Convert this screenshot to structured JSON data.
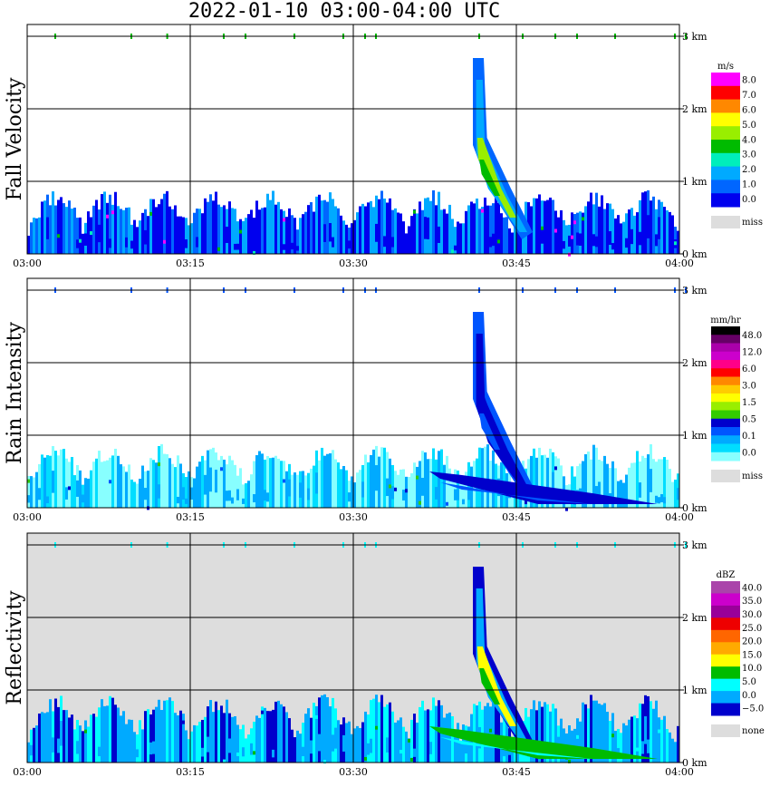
{
  "title": "2022-01-10  03:00-04:00 UTC",
  "x_ticks": [
    "03:00",
    "03:15",
    "03:30",
    "03:45",
    "04:00"
  ],
  "height_ticks": [
    "0 km",
    "1 km",
    "2 km",
    "3 km"
  ],
  "chart_data": [
    {
      "type": "heatmap",
      "ylabel": "Fall Velocity",
      "xlim": [
        "03:00",
        "04:00"
      ],
      "ylim_km": [
        0,
        3
      ],
      "grid": true,
      "colorbar": {
        "unit": "m/s",
        "labels": [
          "8.0",
          "7.0",
          "6.0",
          "5.0",
          "4.0",
          "3.0",
          "2.0",
          "1.0",
          "0.0"
        ],
        "colors": [
          "#ff00ff",
          "#ff0000",
          "#ff8800",
          "#ffff00",
          "#99ee00",
          "#00bb00",
          "#00eebb",
          "#00aaff",
          "#0066ff",
          "#0000ee"
        ],
        "missing_label": "miss",
        "missing_color": "#dddddd"
      },
      "features": [
        {
          "name": "low-echo band",
          "time_start": "03:00",
          "time_end": "04:00",
          "top_km": 0.9,
          "dominant_value": "0.0-1.0"
        },
        {
          "name": "fall streak",
          "time_start": "03:41",
          "time_end": "03:46",
          "top_km": 2.8,
          "dominant_value": "3.0-5.0"
        }
      ]
    },
    {
      "type": "heatmap",
      "ylabel": "Rain Intensity",
      "xlim": [
        "03:00",
        "04:00"
      ],
      "ylim_km": [
        0,
        3
      ],
      "grid": true,
      "colorbar": {
        "unit": "mm/hr",
        "labels": [
          "48.0",
          "12.0",
          "6.0",
          "3.0",
          "1.5",
          "0.5",
          "0.1",
          "0.0"
        ],
        "colors": [
          "#000000",
          "#660066",
          "#aa00aa",
          "#cc00cc",
          "#ff0088",
          "#ff0000",
          "#ff8800",
          "#ffcc00",
          "#ffff00",
          "#99ee00",
          "#33cc00",
          "#0000cc",
          "#0055ff",
          "#00aaff",
          "#00ddff",
          "#88ffff"
        ],
        "missing_label": "miss",
        "missing_color": "#dddddd"
      },
      "features": [
        {
          "name": "light rain band",
          "time_start": "03:00",
          "time_end": "04:00",
          "top_km": 0.9,
          "dominant_value": "0.0-0.1"
        },
        {
          "name": "fall streak",
          "time_start": "03:37",
          "time_end": "03:58",
          "top_km": 2.8,
          "dominant_value": "0.1-0.5"
        }
      ]
    },
    {
      "type": "heatmap",
      "ylabel": "Reflectivity",
      "xlim": [
        "03:00",
        "04:00"
      ],
      "ylim_km": [
        0,
        3
      ],
      "grid": true,
      "colorbar": {
        "unit": "dBZ",
        "labels": [
          "40.0",
          "35.0",
          "30.0",
          "25.0",
          "20.0",
          "15.0",
          "10.0",
          "5.0",
          "0.0",
          "−5.0"
        ],
        "colors": [
          "#aa44aa",
          "#cc00cc",
          "#990099",
          "#ee0000",
          "#ff6600",
          "#ffaa00",
          "#ffff00",
          "#00bb00",
          "#00ffff",
          "#00aaff",
          "#0000cc"
        ],
        "missing_label": "none",
        "missing_color": "#dddddd"
      },
      "features": [
        {
          "name": "low-echo band",
          "time_start": "03:00",
          "time_end": "04:00",
          "top_km": 1.0,
          "dominant_value": "0.0-10.0"
        },
        {
          "name": "fall streak",
          "time_start": "03:37",
          "time_end": "03:58",
          "top_km": 2.8,
          "dominant_value": "15.0-20.0"
        }
      ]
    }
  ]
}
